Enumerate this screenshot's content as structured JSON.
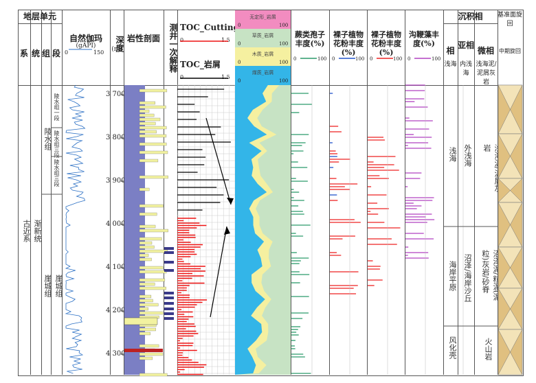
{
  "header": {
    "strat_unit": "地层单元",
    "system": "系",
    "series": "统",
    "group": "组",
    "member": "段",
    "gamma_title": "自然伽玛",
    "gamma_unit": "(gAPI)",
    "gamma_min": "0",
    "gamma_max": "150",
    "depth_title": "深度",
    "depth_unit": "(m)",
    "lith_title": "岩性剖面",
    "interp_title": "测井一次解释",
    "toc_cutting": "TOC_Cutting",
    "toc_cutting_min": "0",
    "toc_cutting_max": "1.5",
    "toc_rock": "TOC_岩屑",
    "toc_rock_min": "0",
    "toc_rock_max": "1.5",
    "fern": "蕨类孢子丰度(%)",
    "gymno": "裸子植物花粉丰度(%)",
    "angio": "裸子植物花粉丰度(%)",
    "dino": "沟鞭藻丰度(%)",
    "abund_min": "0",
    "abund_max": "100",
    "facies": "沉积相",
    "facies_col": "相",
    "subfacies_col": "亚相",
    "microfacies_col": "微相",
    "cycle": "基准面旋回",
    "cycle_sub": "中期旋回",
    "col_shallow_sea": "浅海",
    "col_inner_shallow": "内浅海",
    "col_micro_header": "浅海泥/泥屑灰岩"
  },
  "legend": [
    {
      "label": "无定形_岩屑",
      "min": "0",
      "max": "100",
      "color": "#f28cc0"
    },
    {
      "label": "草质_岩屑",
      "min": "0",
      "max": "100",
      "color": "#c7e3c4"
    },
    {
      "label": "木质_岩屑",
      "min": "0",
      "max": "100",
      "color": "#f5f0a0"
    },
    {
      "label": "煤质_岩屑",
      "min": "0",
      "max": "100",
      "color": "#33b5e8"
    }
  ],
  "strat": {
    "system": "古近系",
    "series": "渐新统",
    "group_upper": "陵水组",
    "group_lower": "崖城组",
    "member_1": "陵水组一段",
    "member_2": "陵水组三段",
    "member_3": "陵水组三段",
    "member_lower": "崖城组"
  },
  "depths": [
    "3 700",
    "3 800",
    "3 900",
    "4 000",
    "4 100",
    "4 200",
    "4 300"
  ],
  "facies": {
    "f1": "浅海",
    "f2": "海岸平原",
    "f3": "风化壳",
    "sub1": "外浅海",
    "sub2": "沼泽/海岸沙丘",
    "micro1": "浅海泥/泥屑灰岩",
    "micro2": "沼泽泥/粒泥(泥粒)灰岩/砂脊",
    "micro3": "火山岩"
  },
  "colors": {
    "lith_blue": "#7b7fc4",
    "lith_yellow": "#f2f2a0",
    "toc_red": "#e11",
    "fern_green": "#2a9a6a",
    "gymno_red": "#e22",
    "angio_red": "#e22",
    "dino_purple": "#b040c0",
    "cycle_tan": "#e0c080"
  }
}
